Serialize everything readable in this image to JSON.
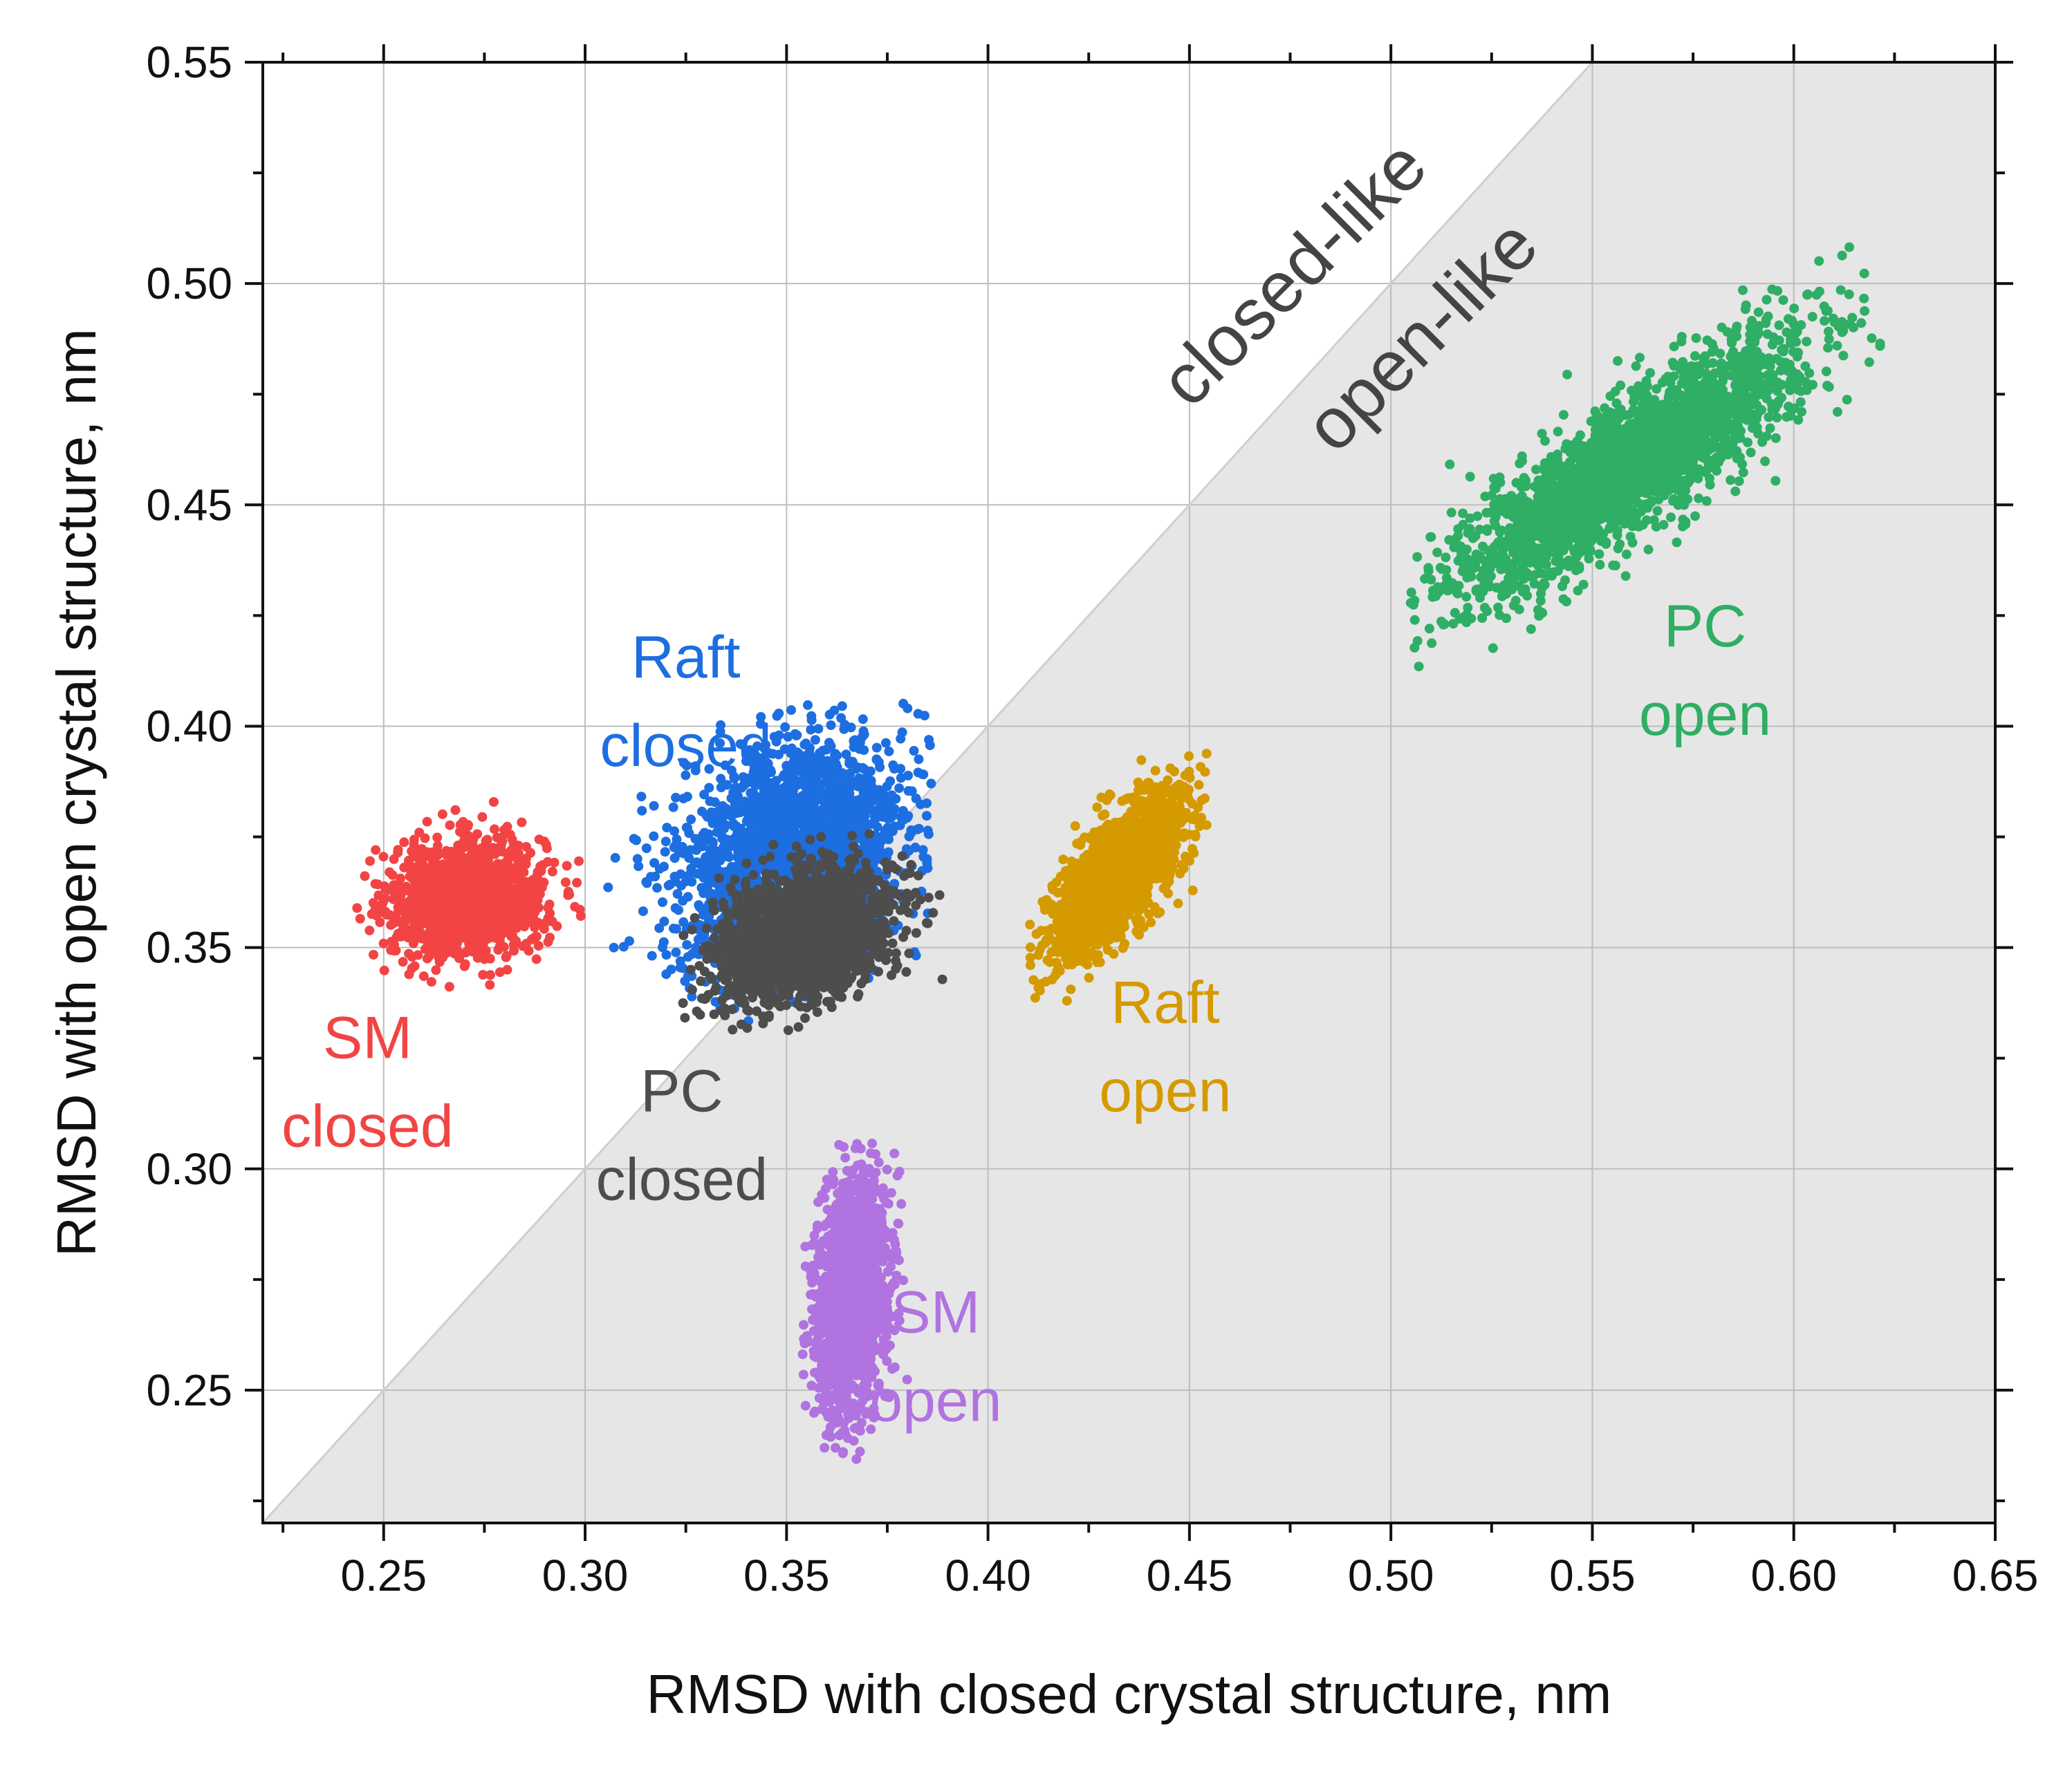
{
  "chart_data": {
    "type": "scatter",
    "title": "",
    "xlabel": "RMSD with closed crystal structure, nm",
    "ylabel": "RMSD with open crystal structure, nm",
    "xlim": [
      0.22,
      0.65
    ],
    "ylim": [
      0.22,
      0.55
    ],
    "x_ticks": [
      "0.25",
      "0.30",
      "0.35",
      "0.40",
      "0.45",
      "0.50",
      "0.55",
      "0.60",
      "0.65"
    ],
    "y_ticks": [
      "0.25",
      "0.30",
      "0.35",
      "0.40",
      "0.45",
      "0.50",
      "0.55"
    ],
    "grid": true,
    "diagonal": {
      "from": [
        0.22,
        0.22
      ],
      "to": [
        0.55,
        0.55
      ],
      "shade": "below",
      "shade_color": "#e6e6e6"
    },
    "region_labels": {
      "above": "closed-like",
      "below": "open-like"
    },
    "series": [
      {
        "name": "SM closed",
        "label_lines": [
          "SM",
          "closed"
        ],
        "color": "#f24444",
        "center": [
          0.271,
          0.361
        ],
        "sd": [
          0.0095,
          0.0065
        ],
        "corr": 0.1,
        "n": 1400,
        "x_range": [
          0.242,
          0.3
        ],
        "y_range": [
          0.341,
          0.386
        ]
      },
      {
        "name": "Raft closed",
        "label_lines": [
          "Raft",
          "closed"
        ],
        "color": "#1d6ee0",
        "center": [
          0.352,
          0.371
        ],
        "sd": [
          0.014,
          0.013
        ],
        "corr": 0.2,
        "n": 2200,
        "x_range": [
          0.305,
          0.386
        ],
        "y_range": [
          0.333,
          0.406
        ]
      },
      {
        "name": "PC closed",
        "label_lines": [
          "PC",
          "closed"
        ],
        "color": "#4d4d4d",
        "center": [
          0.354,
          0.353
        ],
        "sd": [
          0.011,
          0.0075
        ],
        "corr": 0.35,
        "n": 1800,
        "x_range": [
          0.323,
          0.392
        ],
        "y_range": [
          0.331,
          0.378
        ]
      },
      {
        "name": "Raft open",
        "label_lines": [
          "Raft",
          "open"
        ],
        "color": "#d49a00",
        "center": [
          0.432,
          0.366
        ],
        "sd": [
          0.0085,
          0.0095
        ],
        "corr": 0.72,
        "n": 1500,
        "x_range": [
          0.41,
          0.455
        ],
        "y_range": [
          0.337,
          0.395
        ]
      },
      {
        "name": "SM open",
        "label_lines": [
          "SM",
          "open"
        ],
        "color": "#b073e0",
        "center": [
          0.366,
          0.271
        ],
        "sd": [
          0.0048,
          0.0135
        ],
        "corr": 0.25,
        "n": 1500,
        "x_range": [
          0.354,
          0.38
        ],
        "y_range": [
          0.234,
          0.306
        ]
      },
      {
        "name": "PC open",
        "label_lines": [
          "PC",
          "open"
        ],
        "color": "#2fae65",
        "center": [
          0.558,
          0.458
        ],
        "sd": [
          0.021,
          0.0145
        ],
        "corr": 0.85,
        "n": 2600,
        "x_range": [
          0.503,
          0.626
        ],
        "y_range": [
          0.398,
          0.51
        ]
      }
    ],
    "annotations": [
      {
        "series": "SM closed",
        "lines": [
          "SM",
          "closed"
        ],
        "at": [
          0.246,
          0.325
        ]
      },
      {
        "series": "Raft closed",
        "lines": [
          "Raft",
          "closed"
        ],
        "at": [
          0.325,
          0.411
        ]
      },
      {
        "series": "PC closed",
        "lines": [
          "PC",
          "closed"
        ],
        "at": [
          0.324,
          0.313
        ]
      },
      {
        "series": "Raft open",
        "lines": [
          "Raft",
          "open"
        ],
        "at": [
          0.444,
          0.333
        ]
      },
      {
        "series": "SM open",
        "lines": [
          "SM",
          "open"
        ],
        "at": [
          0.387,
          0.263
        ]
      },
      {
        "series": "PC open",
        "lines": [
          "PC",
          "open"
        ],
        "at": [
          0.578,
          0.418
        ]
      }
    ]
  }
}
